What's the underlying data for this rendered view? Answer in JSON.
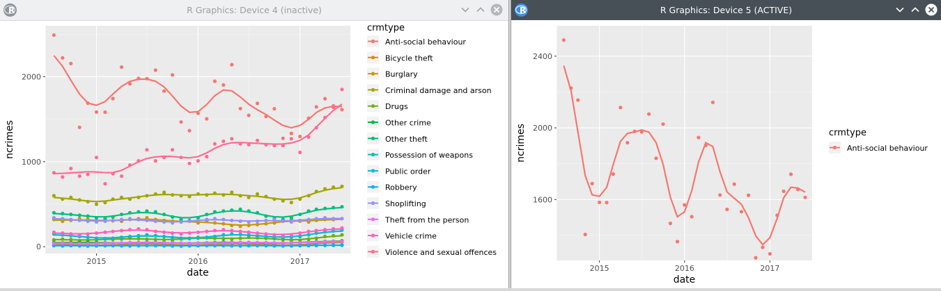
{
  "windows": {
    "left": {
      "title": "R Graphics: Device 4 (inactive)",
      "state": "inactive"
    },
    "right": {
      "title": "R Graphics: Device 5 (ACTIVE)",
      "state": "active"
    }
  },
  "icons": {
    "app": "r-logo-icon",
    "minimize": "chevron-down-icon",
    "maximize": "chevron-up-icon",
    "close": "close-icon"
  },
  "colors": {
    "panel_bg": "#ebebeb",
    "grid": "#ffffff",
    "active_titlebar": "#475057",
    "inactive_titlebar": "#eff0f1"
  },
  "chart_data": [
    {
      "type": "scatter",
      "title": "",
      "xlabel": "date",
      "ylabel": "ncrimes",
      "x_type": "date",
      "xlim": [
        "2014-07-01",
        "2017-07-01"
      ],
      "ylim": [
        -80,
        2600
      ],
      "x_ticks": [
        "2015-01-01",
        "2016-01-01",
        "2017-01-01"
      ],
      "x_tick_labels": [
        "2015",
        "2016",
        "2017"
      ],
      "y_ticks": [
        0,
        1000,
        2000
      ],
      "y_tick_labels": [
        "0",
        "1000",
        "2000"
      ],
      "grid": true,
      "smooth": "loess",
      "legend": {
        "title": "crmtype",
        "placement": "right"
      },
      "series": [
        {
          "name": "Anti-social behaviour",
          "color": "#F8766D",
          "values": [
            2490,
            2222,
            2155,
            1405,
            1689,
            1584,
            1583,
            1742,
            2113,
            1917,
            1980,
            1977,
            2077,
            1830,
            2021,
            1467,
            1365,
            1570,
            1504,
            1946,
            1903,
            2142,
            1625,
            1545,
            1686,
            1532,
            1624,
            1275,
            1333,
            1297,
            1512,
            1646,
            1741,
            1656,
            1612
          ]
        },
        {
          "name": "Bicycle theft",
          "color": "#E58700",
          "values": [
            20,
            25,
            22,
            18,
            15,
            12,
            14,
            20,
            28,
            32,
            38,
            40,
            35,
            30,
            25,
            18,
            14,
            16,
            20,
            28,
            34,
            38,
            40,
            36,
            30,
            24,
            18,
            15,
            17,
            22,
            30,
            38,
            45,
            50,
            55
          ]
        },
        {
          "name": "Burglary",
          "color": "#C99800",
          "values": [
            320,
            300,
            310,
            330,
            320,
            300,
            310,
            305,
            300,
            320,
            330,
            340,
            320,
            310,
            300,
            290,
            300,
            280,
            300,
            280,
            270,
            250,
            240,
            250,
            260,
            270,
            280,
            300,
            320,
            300,
            290,
            310,
            320,
            320,
            330
          ]
        },
        {
          "name": "Criminal damage and arson",
          "color": "#A3A500",
          "values": [
            600,
            560,
            580,
            550,
            530,
            500,
            520,
            560,
            580,
            560,
            580,
            600,
            620,
            640,
            610,
            600,
            590,
            620,
            610,
            630,
            610,
            640,
            600,
            580,
            620,
            590,
            560,
            540,
            520,
            560,
            600,
            650,
            680,
            700,
            710
          ]
        },
        {
          "name": "Drugs",
          "color": "#6BB100",
          "values": [
            80,
            90,
            85,
            70,
            75,
            80,
            90,
            85,
            90,
            100,
            95,
            90,
            85,
            80,
            75,
            90,
            100,
            110,
            105,
            100,
            95,
            90,
            100,
            110,
            105,
            100,
            95,
            80,
            70,
            75,
            90,
            100,
            120,
            130,
            140
          ]
        },
        {
          "name": "Other crime",
          "color": "#00BA38",
          "values": [
            50,
            45,
            48,
            52,
            55,
            50,
            45,
            40,
            42,
            48,
            50,
            55,
            52,
            50,
            45,
            40,
            38,
            42,
            45,
            50,
            55,
            52,
            50,
            48,
            45,
            40,
            38,
            42,
            45,
            50,
            55,
            60,
            62,
            65,
            70
          ]
        },
        {
          "name": "Other theft",
          "color": "#00BF7D",
          "values": [
            400,
            390,
            380,
            370,
            360,
            340,
            330,
            350,
            380,
            400,
            410,
            420,
            410,
            380,
            350,
            320,
            310,
            340,
            380,
            410,
            420,
            430,
            440,
            420,
            400,
            360,
            330,
            320,
            340,
            380,
            420,
            440,
            450,
            460,
            470
          ]
        },
        {
          "name": "Possession of weapons",
          "color": "#00C0AF",
          "values": [
            12,
            10,
            14,
            11,
            9,
            10,
            12,
            13,
            11,
            10,
            12,
            14,
            13,
            11,
            10,
            9,
            11,
            12,
            14,
            13,
            12,
            11,
            10,
            12,
            13,
            14,
            12,
            11,
            10,
            12,
            14,
            15,
            16,
            17,
            18
          ]
        },
        {
          "name": "Public order",
          "color": "#00BCD8",
          "values": [
            150,
            140,
            130,
            120,
            110,
            100,
            95,
            100,
            110,
            120,
            130,
            140,
            130,
            120,
            110,
            100,
            95,
            100,
            110,
            120,
            140,
            150,
            145,
            140,
            130,
            120,
            110,
            100,
            110,
            120,
            140,
            160,
            175,
            185,
            195
          ]
        },
        {
          "name": "Robbery",
          "color": "#00B0F6",
          "values": [
            15,
            12,
            14,
            11,
            10,
            13,
            12,
            14,
            15,
            12,
            13,
            14,
            15,
            12,
            11,
            10,
            12,
            13,
            14,
            15,
            14,
            12,
            11,
            13,
            14,
            12,
            11,
            10,
            12,
            13,
            14,
            15,
            16,
            17,
            18
          ]
        },
        {
          "name": "Shoplifting",
          "color": "#9590FF",
          "values": [
            340,
            330,
            320,
            310,
            300,
            290,
            300,
            310,
            320,
            330,
            320,
            310,
            300,
            290,
            280,
            290,
            300,
            310,
            320,
            330,
            320,
            310,
            300,
            290,
            300,
            310,
            320,
            300,
            290,
            310,
            320,
            330,
            340,
            330,
            330
          ]
        },
        {
          "name": "Theft from the person",
          "color": "#E76BF3",
          "values": [
            40,
            42,
            38,
            36,
            35,
            38,
            40,
            42,
            45,
            48,
            50,
            52,
            50,
            48,
            45,
            42,
            40,
            38,
            40,
            42,
            45,
            48,
            50,
            52,
            50,
            48,
            45,
            42,
            45,
            48,
            50,
            55,
            60,
            62,
            65
          ]
        },
        {
          "name": "Vehicle crime",
          "color": "#FF62BC",
          "values": [
            170,
            160,
            150,
            140,
            150,
            160,
            170,
            180,
            190,
            200,
            210,
            200,
            180,
            170,
            160,
            150,
            160,
            170,
            180,
            190,
            200,
            190,
            180,
            170,
            160,
            150,
            140,
            130,
            140,
            160,
            180,
            190,
            200,
            210,
            220
          ]
        },
        {
          "name": "Violence and sexual offences",
          "color": "#FF6C91",
          "values": [
            870,
            820,
            920,
            830,
            850,
            1050,
            740,
            860,
            830,
            960,
            1010,
            1140,
            1010,
            1050,
            1140,
            1050,
            980,
            1010,
            1060,
            1210,
            1240,
            1270,
            1210,
            1200,
            1250,
            1200,
            1190,
            1190,
            1270,
            1110,
            1290,
            1400,
            1520,
            1640,
            1850
          ]
        }
      ]
    },
    {
      "type": "scatter",
      "title": "",
      "xlabel": "date",
      "ylabel": "ncrimes",
      "x_type": "date",
      "xlim": [
        "2014-07-01",
        "2017-07-01"
      ],
      "ylim": [
        1260,
        2570
      ],
      "x_ticks": [
        "2015-01-01",
        "2016-01-01",
        "2017-01-01"
      ],
      "x_tick_labels": [
        "2015",
        "2016",
        "2017"
      ],
      "y_ticks": [
        1600,
        2000,
        2400
      ],
      "y_tick_labels": [
        "1600",
        "2000",
        "2400"
      ],
      "grid": true,
      "smooth": "loess",
      "legend": {
        "title": "crmtype",
        "placement": "right"
      },
      "series": [
        {
          "name": "Anti-social behaviour",
          "color": "#F8766D",
          "values": [
            2490,
            2222,
            2155,
            1405,
            1689,
            1584,
            1583,
            1742,
            2113,
            1917,
            1980,
            1977,
            2077,
            1830,
            2021,
            1467,
            1365,
            1570,
            1504,
            1946,
            1903,
            2142,
            1625,
            1545,
            1686,
            1532,
            1624,
            1275,
            1333,
            1297,
            1512,
            1646,
            1741,
            1656,
            1612
          ]
        }
      ]
    }
  ]
}
